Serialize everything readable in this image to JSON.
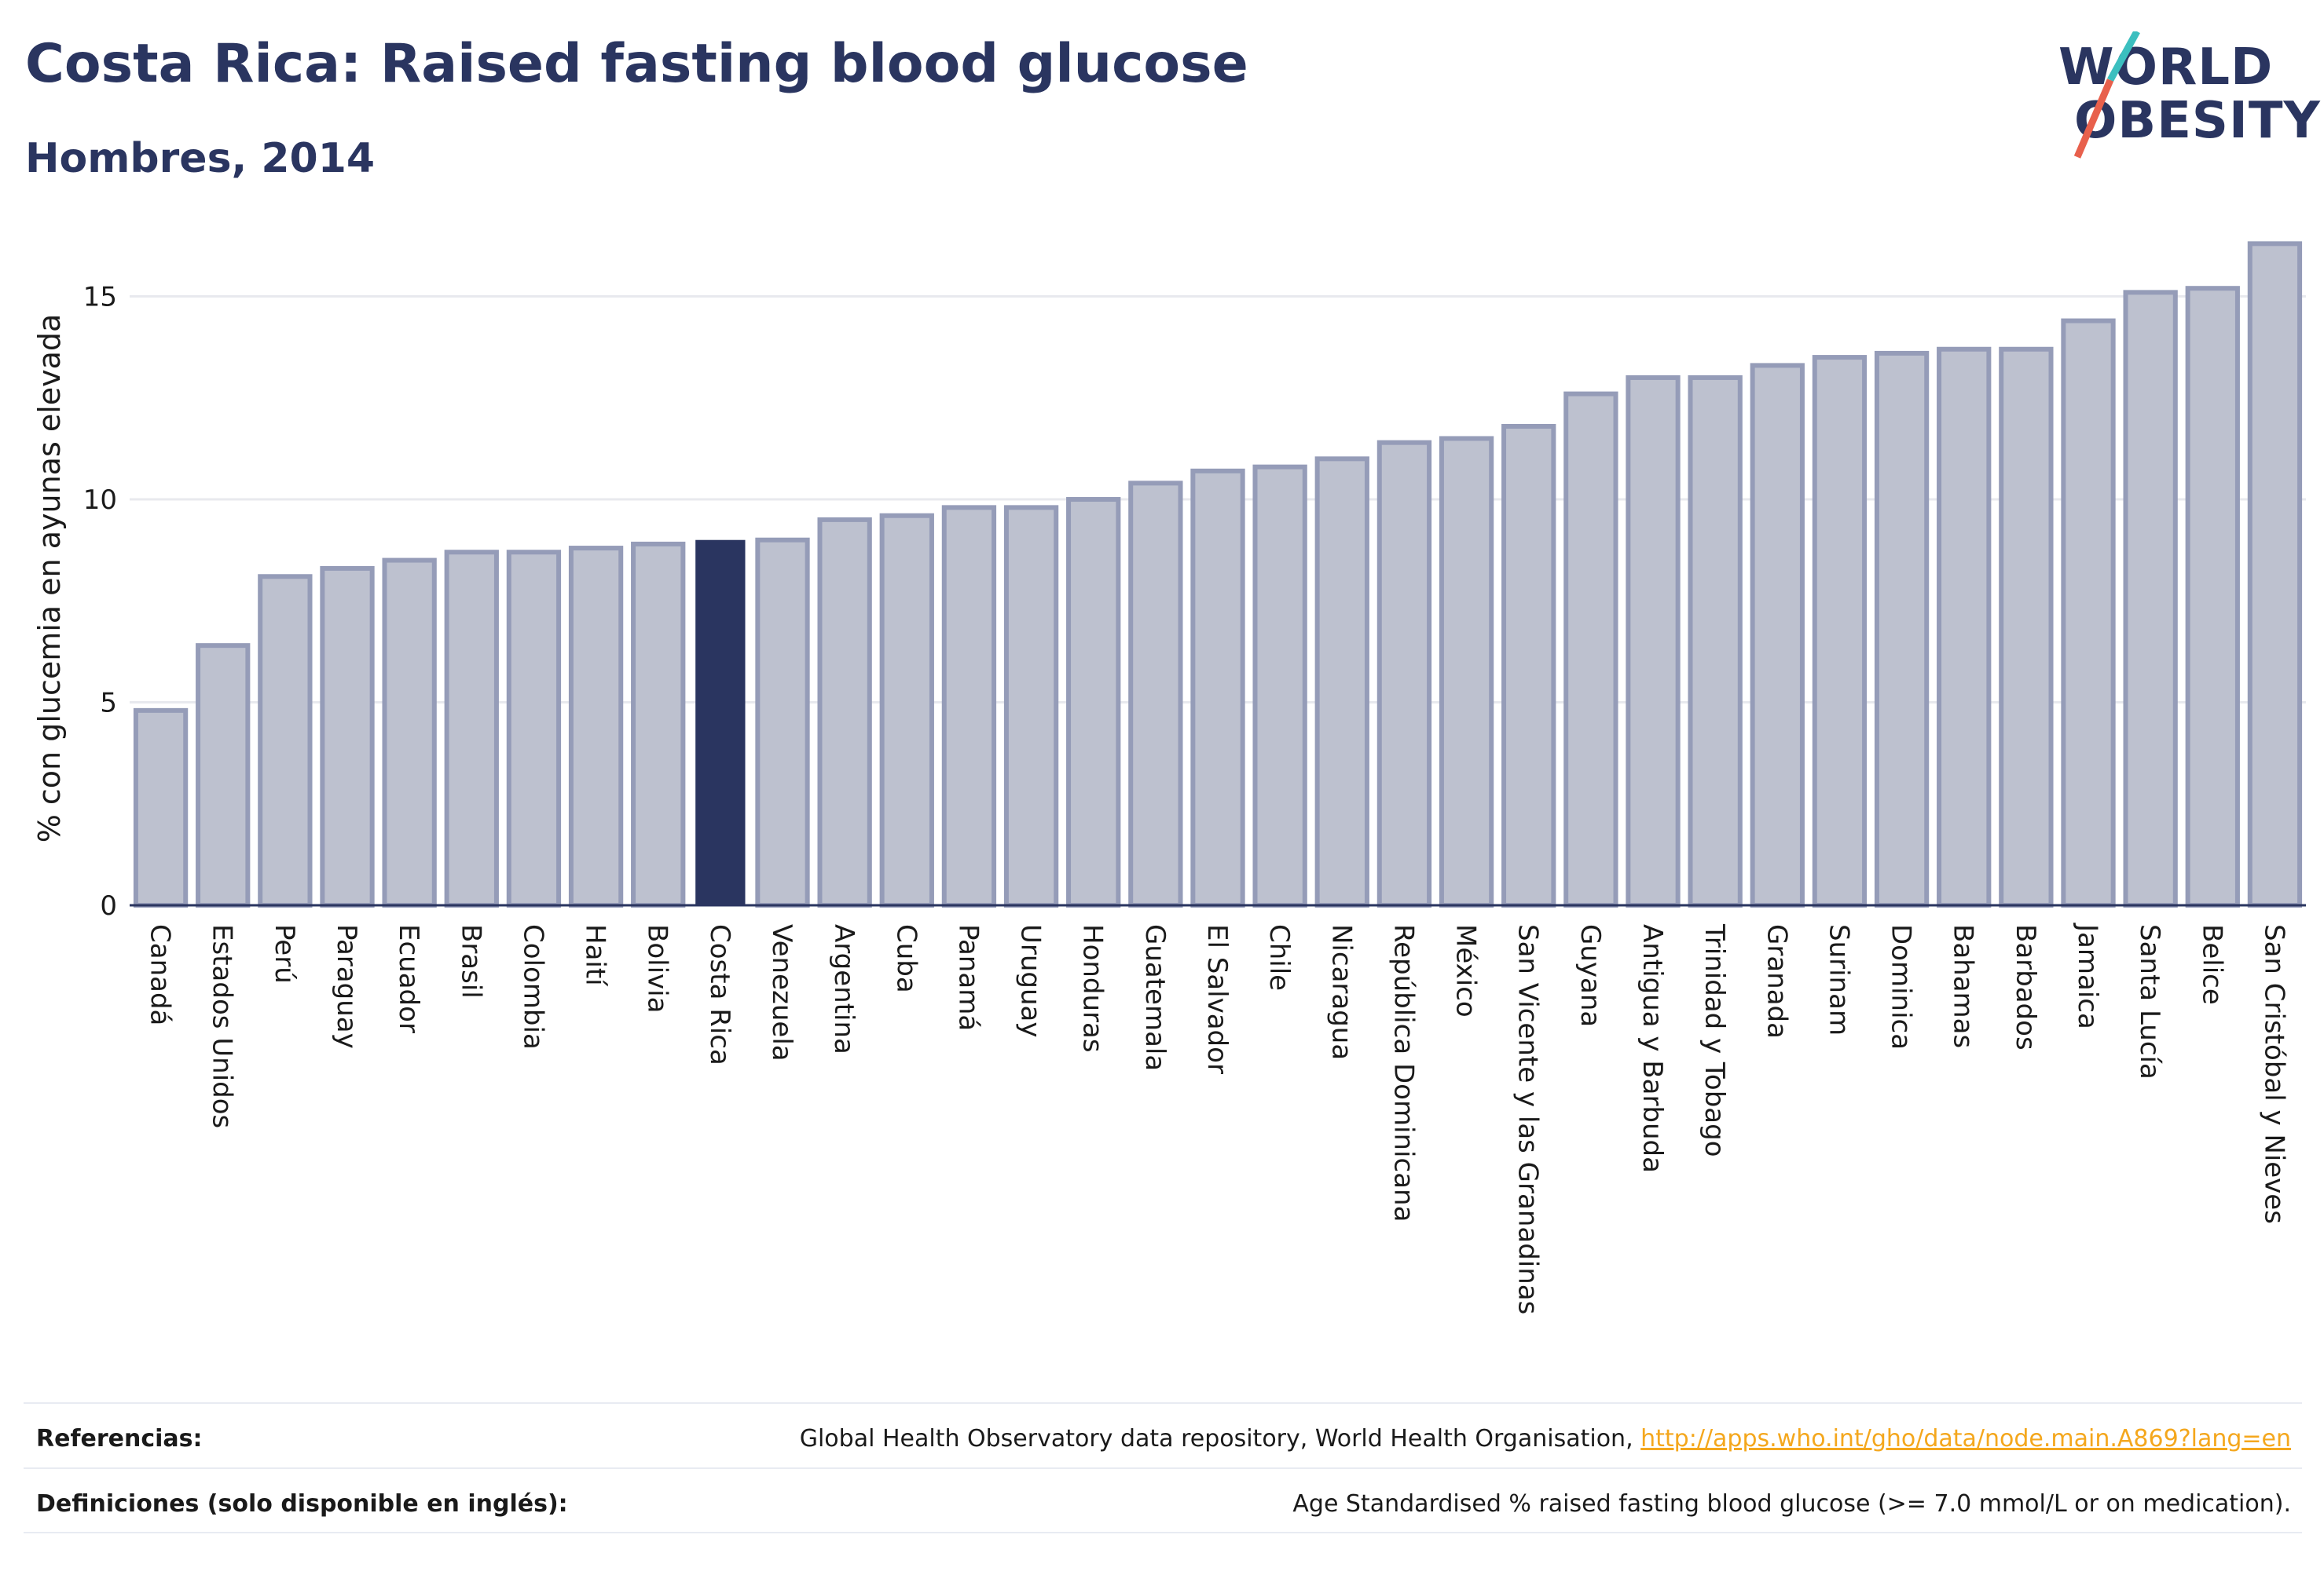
{
  "header": {
    "title": "Costa Rica: Raised fasting blood glucose",
    "subtitle": "Hombres, 2014"
  },
  "logo": {
    "line1": "WORLD",
    "line2": "OBESITY",
    "colors": {
      "text": "#2a3560",
      "slash_top": "#3bbfbf",
      "slash_bottom": "#e8604c"
    }
  },
  "colors": {
    "highlight_bar": "#2a3560",
    "other_bar_fill": "#bdc1cf",
    "other_bar_stroke": "#959cb8",
    "gridline": "#e8e9ee",
    "axis_line": "#2a3560"
  },
  "chart_data": {
    "type": "bar",
    "ylabel": "% con glucemia en ayunas elevada",
    "ylim": [
      0,
      16.5
    ],
    "yticks": [
      0,
      5,
      10,
      15
    ],
    "grid": true,
    "highlight": "Costa Rica",
    "categories": [
      "Canadá",
      "Estados Unidos",
      "Perú",
      "Paraguay",
      "Ecuador",
      "Brasil",
      "Colombia",
      "Haití",
      "Bolivia",
      "Costa Rica",
      "Venezuela",
      "Argentina",
      "Cuba",
      "Panamá",
      "Uruguay",
      "Honduras",
      "Guatemala",
      "El Salvador",
      "Chile",
      "Nicaragua",
      "República Dominicana",
      "México",
      "San Vicente y las Granadinas",
      "Guyana",
      "Antigua y Barbuda",
      "Trinidad y Tobago",
      "Granada",
      "Surinam",
      "Dominica",
      "Bahamas",
      "Barbados",
      "Jamaica",
      "Santa Lucía",
      "Belice",
      "San Cristóbal y Nieves"
    ],
    "values": [
      4.8,
      6.4,
      8.1,
      8.3,
      8.5,
      8.7,
      8.7,
      8.8,
      8.9,
      9.0,
      9.0,
      9.5,
      9.6,
      9.8,
      9.8,
      10.0,
      10.4,
      10.7,
      10.8,
      11.0,
      11.4,
      11.5,
      11.8,
      12.6,
      13.0,
      13.0,
      13.3,
      13.5,
      13.6,
      13.7,
      13.7,
      14.4,
      15.1,
      15.2,
      16.3
    ]
  },
  "footer": {
    "references_label": "Referencias:",
    "references_text": "Global Health Observatory data repository, World Health Organisation, ",
    "references_link": "http://apps.who.int/gho/data/node.main.A869?lang=en",
    "definitions_label": "Definiciones (solo disponible en inglés):",
    "definitions_text": "Age Standardised % raised fasting blood glucose (>= 7.0 mmol/L or on medication)."
  }
}
